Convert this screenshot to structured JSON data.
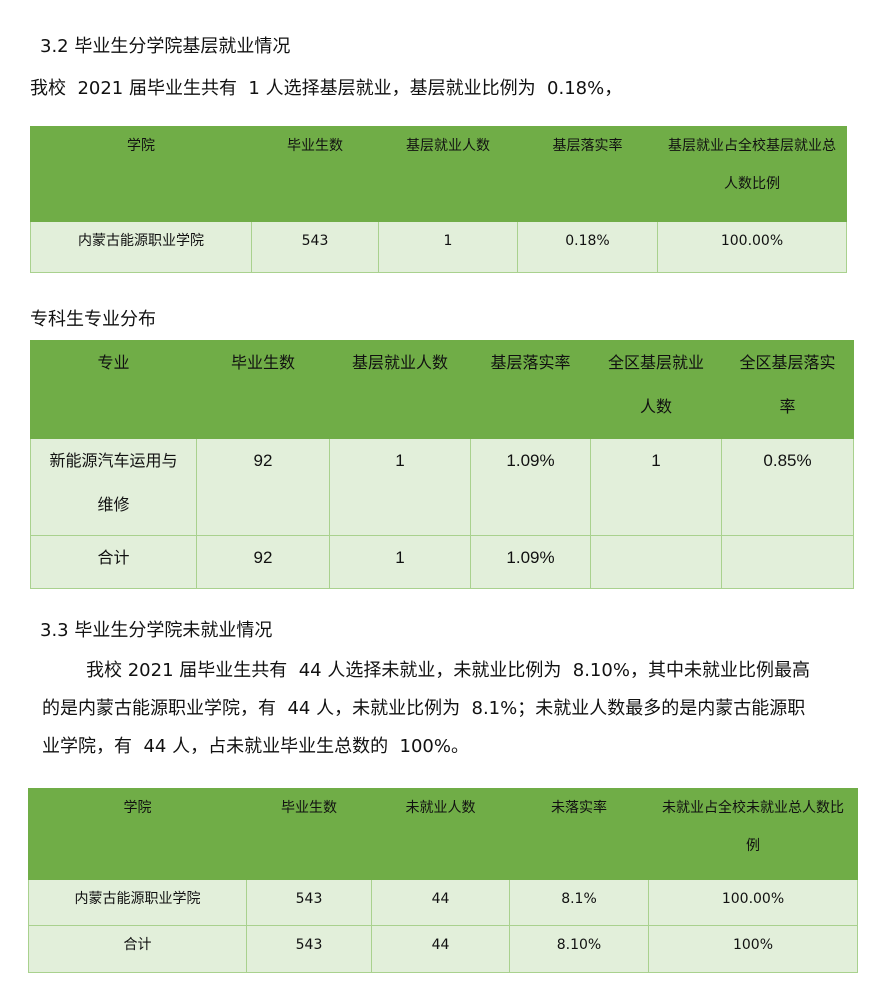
{
  "s32": {
    "heading": "3.2 毕业生分学院基层就业情况",
    "para": "我校  2021 届毕业生共有  1 人选择基层就业，基层就业比例为  0.18%，"
  },
  "table1": {
    "headers": [
      "学院",
      "毕业生数",
      "基层就业人数",
      "基层落实率",
      "基层就业占全校基层就业总人数比例"
    ],
    "rows": [
      [
        "内蒙古能源职业学院",
        "543",
        "1",
        "0.18%",
        "100.00%"
      ]
    ]
  },
  "sub_heading": "专科生专业分布",
  "table2": {
    "headers": [
      "专业",
      "毕业生数",
      "基层就业人数",
      "基层落实率",
      "全区基层就业人数",
      "全区基层落实率"
    ],
    "rows": [
      [
        "新能源汽车运用与维修",
        "92",
        "1",
        "1.09%",
        "1",
        "0.85%"
      ],
      [
        "合计",
        "92",
        "1",
        "1.09%",
        "",
        ""
      ]
    ]
  },
  "s33": {
    "heading": "3.3 毕业生分学院未就业情况",
    "para": "我校 2021 届毕业生共有  44 人选择未就业，未就业比例为  8.10%，其中未就业比例最高的是内蒙古能源职业学院，有  44 人，未就业比例为  8.1%；未就业人数最多的是内蒙古能源职业学院，有  44 人，占未就业毕业生总数的  100%。"
  },
  "table3": {
    "headers": [
      "学院",
      "毕业生数",
      "未就业人数",
      "未落实率",
      "未就业占全校未就业总人数比例"
    ],
    "rows": [
      [
        "内蒙古能源职业学院",
        "543",
        "44",
        "8.1%",
        "100.00%"
      ],
      [
        "合计",
        "543",
        "44",
        "8.10%",
        "100%"
      ]
    ]
  },
  "colors": {
    "header_bg": "#70ad47",
    "body_bg": "#e2efda"
  }
}
